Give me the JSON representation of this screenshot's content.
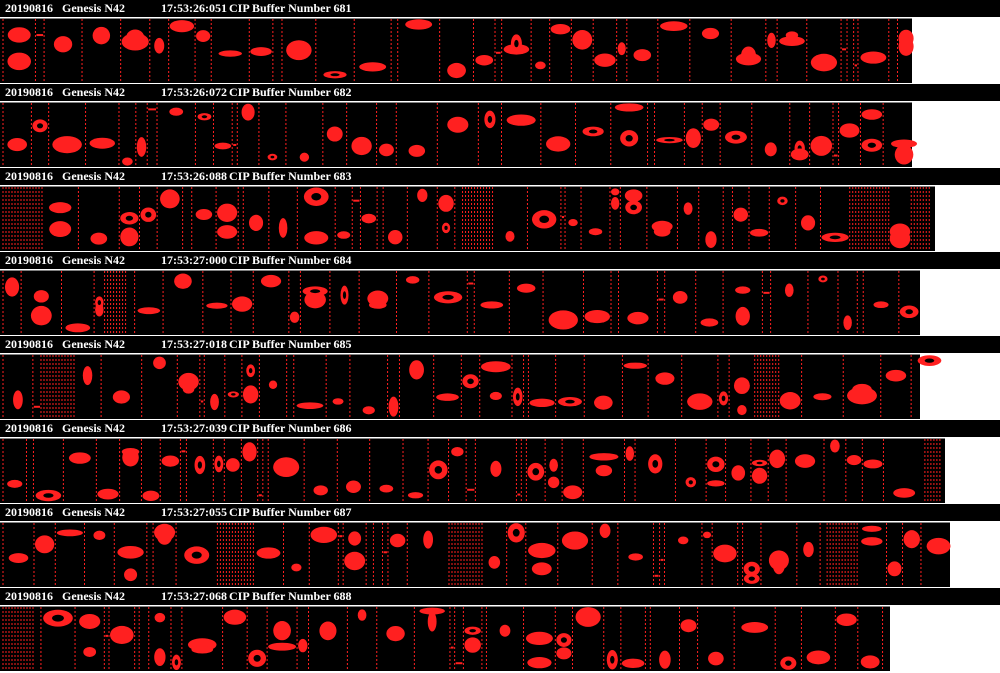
{
  "panels": [
    {
      "date": "20190816",
      "probe": "Genesis N42",
      "time": "17:53:26:051",
      "buffer": "CIP Buffer Number 681"
    },
    {
      "date": "20190816",
      "probe": "Genesis N42",
      "time": "17:53:26:072",
      "buffer": "CIP Buffer Number 682"
    },
    {
      "date": "20190816",
      "probe": "Genesis N42",
      "time": "17:53:26:088",
      "buffer": "CIP Buffer Number 683"
    },
    {
      "date": "20190816",
      "probe": "Genesis N42",
      "time": "17:53:27:000",
      "buffer": "CIP Buffer Number 684"
    },
    {
      "date": "20190816",
      "probe": "Genesis N42",
      "time": "17:53:27:018",
      "buffer": "CIP Buffer Number 685"
    },
    {
      "date": "20190816",
      "probe": "Genesis N42",
      "time": "17:53:27:039",
      "buffer": "CIP Buffer Number 686"
    },
    {
      "date": "20190816",
      "probe": "Genesis N42",
      "time": "17:53:27:055",
      "buffer": "CIP Buffer Number 687"
    },
    {
      "date": "20190816",
      "probe": "Genesis N42",
      "time": "17:53:27:068",
      "buffer": "CIP Buffer Number 688"
    }
  ]
}
